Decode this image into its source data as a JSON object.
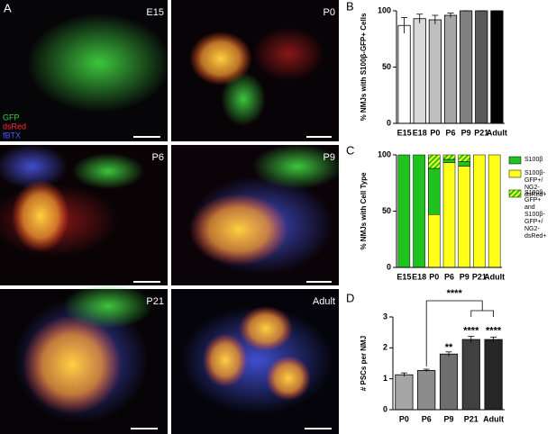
{
  "images": {
    "figure_label": "A",
    "panels": [
      {
        "label": "E15"
      },
      {
        "label": "P0"
      },
      {
        "label": "P6"
      },
      {
        "label": "P9"
      },
      {
        "label": "P21"
      },
      {
        "label": "Adult"
      }
    ],
    "channels": [
      {
        "name": "GFP",
        "color": "#3bd13b"
      },
      {
        "name": "dsRed",
        "color": "#ff3030"
      },
      {
        "name": "fBTX",
        "color": "#4a5cff"
      }
    ]
  },
  "chart_data": [
    {
      "type": "bar",
      "panel_label": "B",
      "ylabel": "% NMJs with S100β-GFP+ Cells",
      "categories": [
        "E15",
        "E18",
        "P0",
        "P6",
        "P9",
        "P21",
        "Adult"
      ],
      "values": [
        87,
        93,
        92,
        96,
        100,
        100,
        100
      ],
      "errors": [
        7,
        4,
        4,
        2,
        0,
        0,
        0
      ],
      "colors": [
        "#ffffff",
        "#d9d9d9",
        "#bfbfbf",
        "#a6a6a6",
        "#808080",
        "#595959",
        "#000000"
      ],
      "ylim": [
        0,
        100
      ],
      "yticks": [
        0,
        50,
        100
      ]
    },
    {
      "type": "stacked_bar",
      "panel_label": "C",
      "ylabel": "% NMJs with Cell Type",
      "categories": [
        "E15",
        "E18",
        "P0",
        "P6",
        "P9",
        "P21",
        "Adult"
      ],
      "series": [
        {
          "name": "S100β-GFP+/\nNG2-dsRed+",
          "color": "#ffff1a",
          "values": [
            0,
            0,
            47,
            93,
            90,
            100,
            100
          ]
        },
        {
          "name": "S100β",
          "color": "#1fc21f",
          "values": [
            100,
            100,
            41,
            3,
            4,
            0,
            0
          ]
        },
        {
          "name": "S100β-GFP+\nand\nS100β-GFP+/\nNG2-dsRed+",
          "color": "#1fc21f",
          "hatch": "#ffff1a",
          "values": [
            0,
            0,
            12,
            4,
            6,
            0,
            0
          ]
        }
      ],
      "ylim": [
        0,
        100
      ],
      "yticks": [
        0,
        50,
        100
      ]
    },
    {
      "type": "bar",
      "panel_label": "D",
      "ylabel": "# PSCs per NMJ",
      "categories": [
        "P0",
        "P6",
        "P9",
        "P21",
        "Adult"
      ],
      "values": [
        1.13,
        1.27,
        1.8,
        2.27,
        2.27
      ],
      "errors": [
        0.06,
        0.04,
        0.07,
        0.1,
        0.08
      ],
      "colors": [
        "#a6a6a6",
        "#8c8c8c",
        "#6e6e6e",
        "#404040",
        "#262626"
      ],
      "annotations": [
        "**",
        "****",
        "****",
        "****"
      ],
      "ylim": [
        0,
        3
      ],
      "yticks": [
        0,
        1,
        2,
        3
      ]
    }
  ]
}
